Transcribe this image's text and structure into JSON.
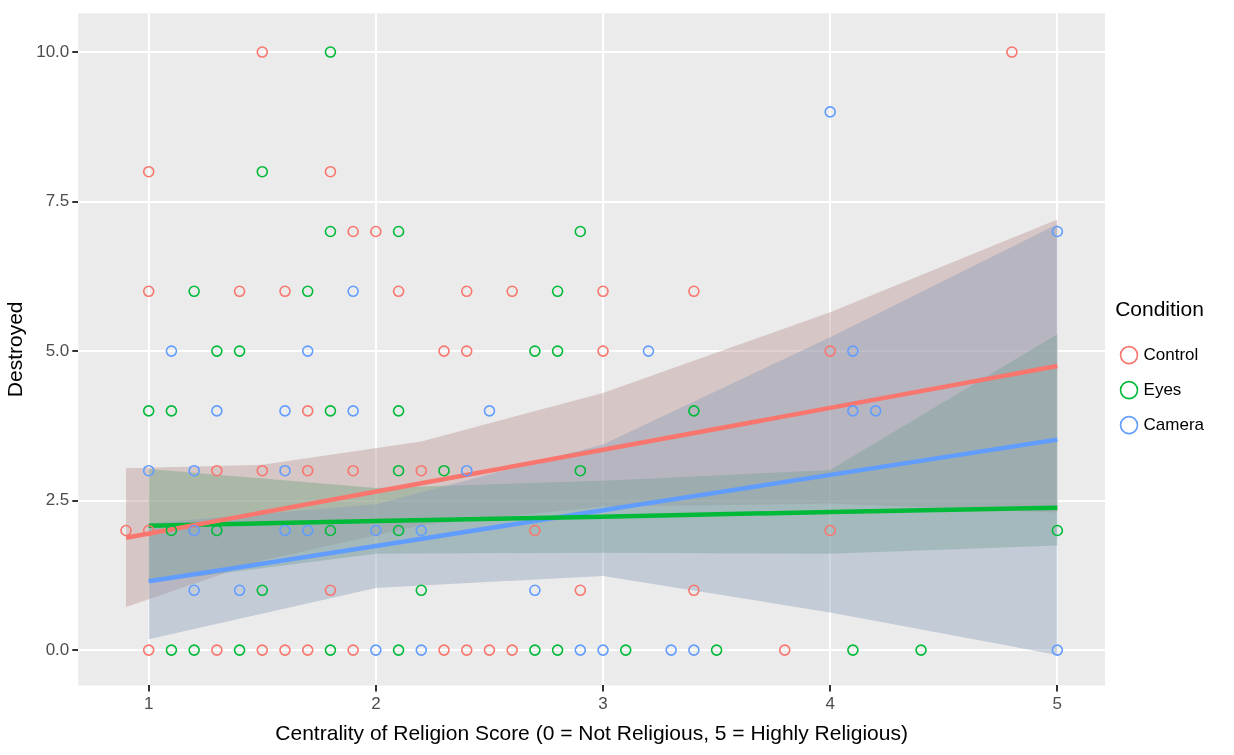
{
  "chart_data": {
    "type": "scatter",
    "xlabel": "Centrality of Religion Score (0 = Not Religious, 5 = Highly Religious)",
    "ylabel": "Destroyed",
    "legend_title": "Condition",
    "legend": "right",
    "grid": true,
    "marker": "circle",
    "xlim": [
      0.69,
      5.21
    ],
    "xticks": [
      1,
      2,
      3,
      4,
      5
    ],
    "ylim": [
      -0.59,
      10.65
    ],
    "yticks": [
      {
        "value": 0,
        "label": "0.0"
      },
      {
        "value": 2.5,
        "label": "2.5"
      },
      {
        "value": 5,
        "label": "5.0"
      },
      {
        "value": 7.5,
        "label": "7.5"
      },
      {
        "value": 10,
        "label": "10.0"
      }
    ],
    "series": [
      {
        "name": "Control",
        "color": "#f8766d",
        "x": [
          1.5,
          4.8,
          1.0,
          1.8,
          1.9,
          2.0,
          1.0,
          1.4,
          1.6,
          2.1,
          2.4,
          2.6,
          3.0,
          3.4,
          2.3,
          2.4,
          3.0,
          4.0,
          1.7,
          1.3,
          1.5,
          1.7,
          1.9,
          2.2,
          0.9,
          1.0,
          2.7,
          4.0,
          1.8,
          2.9,
          3.4,
          1.0,
          1.3,
          1.5,
          1.6,
          1.7,
          1.9,
          2.3,
          2.4,
          2.5,
          2.6,
          3.8
        ],
        "values": [
          10,
          10,
          8,
          8,
          7,
          7,
          6,
          6,
          6,
          6,
          6,
          6,
          6,
          6,
          5,
          5,
          5,
          5,
          4,
          3,
          3,
          3,
          3,
          3,
          2,
          2,
          2,
          2,
          1,
          1,
          1,
          0,
          0,
          0,
          0,
          0,
          0,
          0,
          0,
          0,
          0,
          0
        ]
      },
      {
        "name": "Eyes",
        "color": "#00ba38",
        "x": [
          1.8,
          1.5,
          1.8,
          2.1,
          2.9,
          1.2,
          1.7,
          2.8,
          1.3,
          1.4,
          2.7,
          2.8,
          1.0,
          1.1,
          1.8,
          2.1,
          3.4,
          2.1,
          2.3,
          2.9,
          1.1,
          1.3,
          1.8,
          2.1,
          5.0,
          1.5,
          2.2,
          1.1,
          1.2,
          1.4,
          1.8,
          2.1,
          2.7,
          2.8,
          3.1,
          3.5,
          4.1,
          4.4
        ],
        "values": [
          10,
          8,
          7,
          7,
          7,
          6,
          6,
          6,
          5,
          5,
          5,
          5,
          4,
          4,
          4,
          4,
          4,
          3,
          3,
          3,
          2,
          2,
          2,
          2,
          2,
          1,
          1,
          0,
          0,
          0,
          0,
          0,
          0,
          0,
          0,
          0,
          0,
          0
        ]
      },
      {
        "name": "Camera",
        "color": "#619cff",
        "x": [
          4.0,
          5.0,
          1.9,
          1.1,
          1.7,
          3.2,
          4.1,
          1.3,
          1.6,
          1.9,
          2.5,
          4.1,
          4.2,
          1.0,
          1.2,
          1.6,
          2.4,
          1.2,
          1.6,
          1.7,
          2.0,
          2.2,
          1.2,
          1.4,
          2.7,
          2.0,
          2.2,
          2.9,
          3.0,
          3.3,
          3.4,
          5.0
        ],
        "values": [
          9,
          7,
          6,
          5,
          5,
          5,
          5,
          4,
          4,
          4,
          4,
          4,
          4,
          3,
          3,
          3,
          3,
          2,
          2,
          2,
          2,
          2,
          1,
          1,
          1,
          0,
          0,
          0,
          0,
          0,
          0,
          0
        ]
      },
      {
        "type": "line",
        "color": "#f8766d",
        "marker": "none",
        "x": [
          0.9,
          1.5,
          2.2,
          3,
          4,
          5
        ],
        "values": [
          1.88,
          2.3,
          2.79,
          3.35,
          4.05,
          4.75
        ],
        "lower": [
          0.72,
          1.5,
          2.09,
          2.4,
          2.45,
          2.3
        ],
        "upper": [
          3.04,
          3.1,
          3.49,
          4.3,
          5.65,
          7.2
        ]
      },
      {
        "type": "line",
        "color": "#00ba38",
        "marker": "none",
        "x": [
          1,
          2,
          3,
          4,
          5
        ],
        "values": [
          2.08,
          2.16,
          2.23,
          2.31,
          2.38
        ],
        "lower": [
          1.13,
          1.61,
          1.63,
          1.61,
          1.75
        ],
        "upper": [
          3.03,
          2.71,
          2.83,
          3.01,
          5.28
        ]
      },
      {
        "type": "line",
        "color": "#619cff",
        "marker": "none",
        "x": [
          1,
          2,
          3,
          4,
          5
        ],
        "values": [
          1.15,
          1.74,
          2.34,
          2.93,
          3.52
        ],
        "lower": [
          0.18,
          1.04,
          1.24,
          0.63,
          -0.08
        ],
        "upper": [
          2.12,
          2.44,
          3.44,
          5.23,
          7.12
        ]
      }
    ]
  }
}
